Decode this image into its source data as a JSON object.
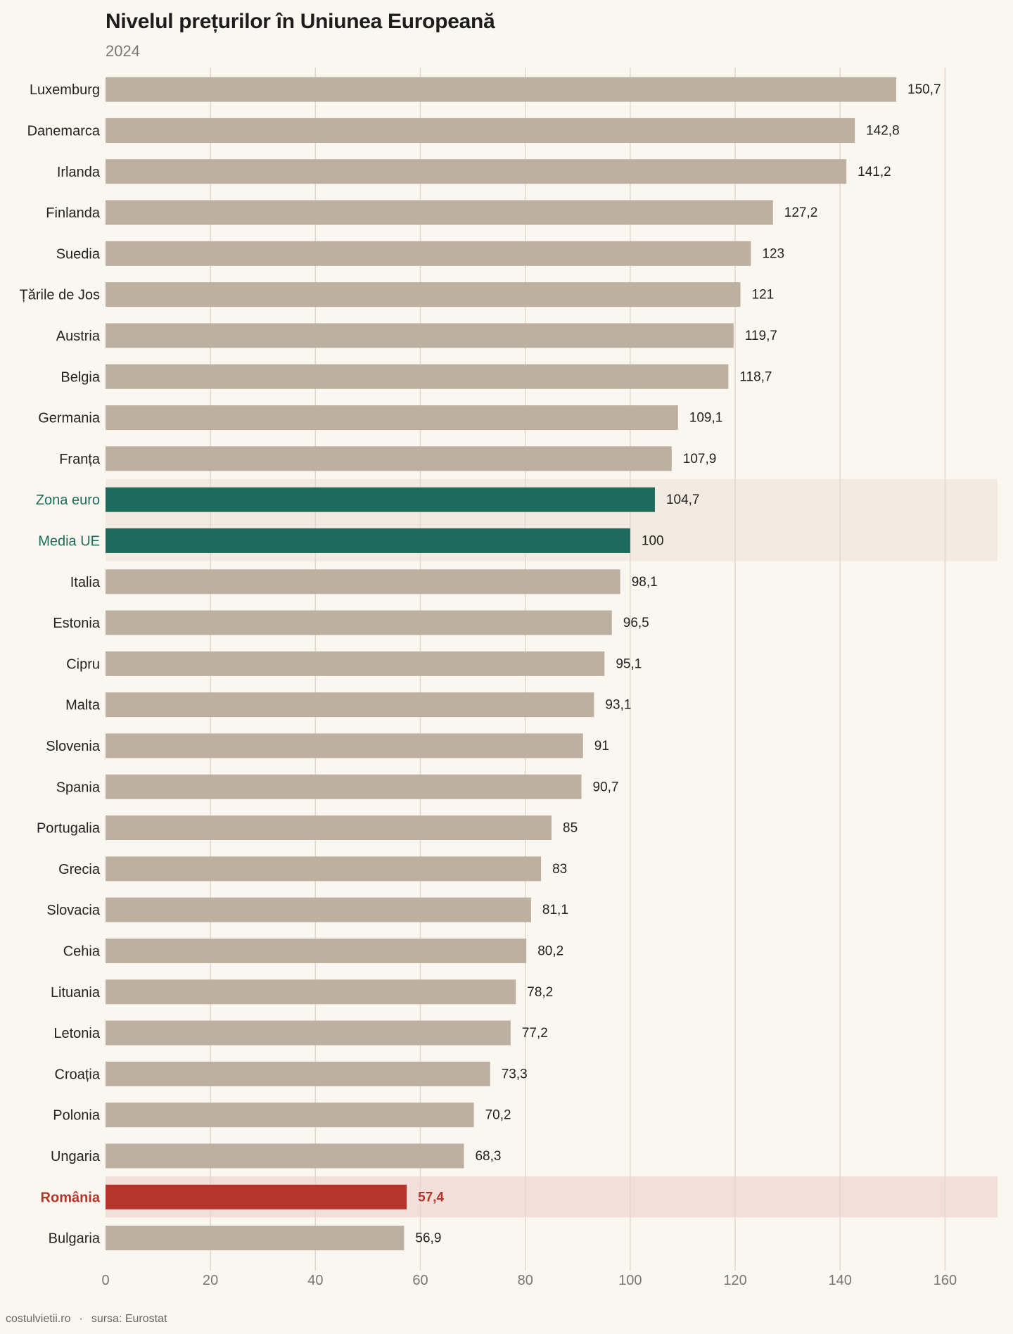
{
  "title": "Nivelul prețurilor în Uniunea Europeană",
  "subtitle": "2024",
  "footer": {
    "site": "costulvietii.ro",
    "separator": "·",
    "source": "sursa: Eurostat"
  },
  "colors": {
    "background": "#faf7f1",
    "bar_default": "#bdb0a0",
    "bar_eu": "#1d6b5c",
    "bar_romania": "#b5342b",
    "highlight_eu_band": "#f3ebe1",
    "highlight_romania_band": "#f2dfd9",
    "grid": "#e2d8cd",
    "label_default": "#222222",
    "axis_tick": "#777777"
  },
  "chart_data": {
    "type": "bar",
    "orientation": "horizontal",
    "title": "Nivelul prețurilor în Uniunea Europeană",
    "subtitle": "2024",
    "xlim": [
      0,
      170
    ],
    "x_ticks": [
      0,
      20,
      40,
      60,
      80,
      100,
      120,
      140,
      160
    ],
    "grid": true,
    "categories": [
      "Luxemburg",
      "Danemarca",
      "Irlanda",
      "Finlanda",
      "Suedia",
      "Țările de Jos",
      "Austria",
      "Belgia",
      "Germania",
      "Franța",
      "Zona euro",
      "Media UE",
      "Italia",
      "Estonia",
      "Cipru",
      "Malta",
      "Slovenia",
      "Spania",
      "Portugalia",
      "Grecia",
      "Slovacia",
      "Cehia",
      "Lituania",
      "Letonia",
      "Croația",
      "Polonia",
      "Ungaria",
      "România",
      "Bulgaria"
    ],
    "values": [
      150.7,
      142.8,
      141.2,
      127.2,
      123,
      121,
      119.7,
      118.7,
      109.1,
      107.9,
      104.7,
      100,
      98.1,
      96.5,
      95.1,
      93.1,
      91,
      90.7,
      85,
      83,
      81.1,
      80.2,
      78.2,
      77.2,
      73.3,
      70.2,
      68.3,
      57.4,
      56.9
    ],
    "value_labels": [
      "150,7",
      "142,8",
      "141,2",
      "127,2",
      "123",
      "121",
      "119,7",
      "118,7",
      "109,1",
      "107,9",
      "104,7",
      "100",
      "98,1",
      "96,5",
      "95,1",
      "93,1",
      "91",
      "90,7",
      "85",
      "83",
      "81,1",
      "80,2",
      "78,2",
      "77,2",
      "73,3",
      "70,2",
      "68,3",
      "57,4",
      "56,9"
    ],
    "highlights": {
      "Zona euro": "eu",
      "Media UE": "eu",
      "România": "romania"
    }
  }
}
